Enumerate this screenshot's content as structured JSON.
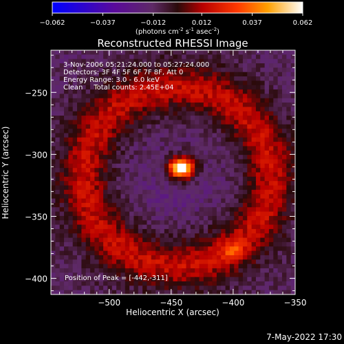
{
  "colorbar": {
    "ticks": [
      "-0.062",
      "-0.037",
      "-0.012",
      "0.012",
      "0.037",
      "0.062"
    ],
    "range": [
      -0.062,
      0.062
    ],
    "unit_main": "(photons cm",
    "unit_exp1": "-2",
    "unit_mid": " s",
    "unit_exp2": "-1",
    "unit_end": " asec",
    "unit_exp3": "-2",
    "unit_close": ")"
  },
  "chart_data": {
    "type": "heatmap",
    "title": "Reconstructed RHESSI Image",
    "xlabel": "Heliocentric X (arcsec)",
    "ylabel": "Heliocentric Y (arcsec)",
    "xlim": [
      -547,
      -350
    ],
    "ylim": [
      -413,
      -216
    ],
    "x_ticks": [
      {
        "value": -500,
        "label": "−500"
      },
      {
        "value": -450,
        "label": "−450"
      },
      {
        "value": -400,
        "label": "−400"
      },
      {
        "value": -350,
        "label": "−350"
      }
    ],
    "y_ticks": [
      {
        "value": -250,
        "label": "−250"
      },
      {
        "value": -300,
        "label": "−300"
      },
      {
        "value": -350,
        "label": "−350"
      },
      {
        "value": -400,
        "label": "−400"
      }
    ],
    "grid": false,
    "info_lines": [
      "3-Nov-2006 05:21:24.000 to 05:27:24.000",
      "Detectors: 3F 4F 5F 6F 7F 8F, Att 0",
      "Energy Range: 3.0 - 6.0 keV",
      "Clean     Total counts: 2.45E+04"
    ],
    "peak_label": "Position of Peak = [-442,-311]",
    "peak": {
      "x": -442,
      "y": -311,
      "value": 0.062
    },
    "secondary_peak": {
      "x": -400,
      "y": -378
    },
    "colormap": [
      {
        "v": -0.062,
        "color": "#0000ff"
      },
      {
        "v": -0.031,
        "color": "#5a0a9a"
      },
      {
        "v": -0.012,
        "color": "#5e2a66"
      },
      {
        "v": 0.0,
        "color": "#2a0a0a"
      },
      {
        "v": 0.012,
        "color": "#b80000"
      },
      {
        "v": 0.03,
        "color": "#ff3a00"
      },
      {
        "v": 0.045,
        "color": "#ffa000"
      },
      {
        "v": 0.062,
        "color": "#ffffff"
      }
    ]
  },
  "footer": {
    "timestamp": "7-May-2022 17:30"
  }
}
